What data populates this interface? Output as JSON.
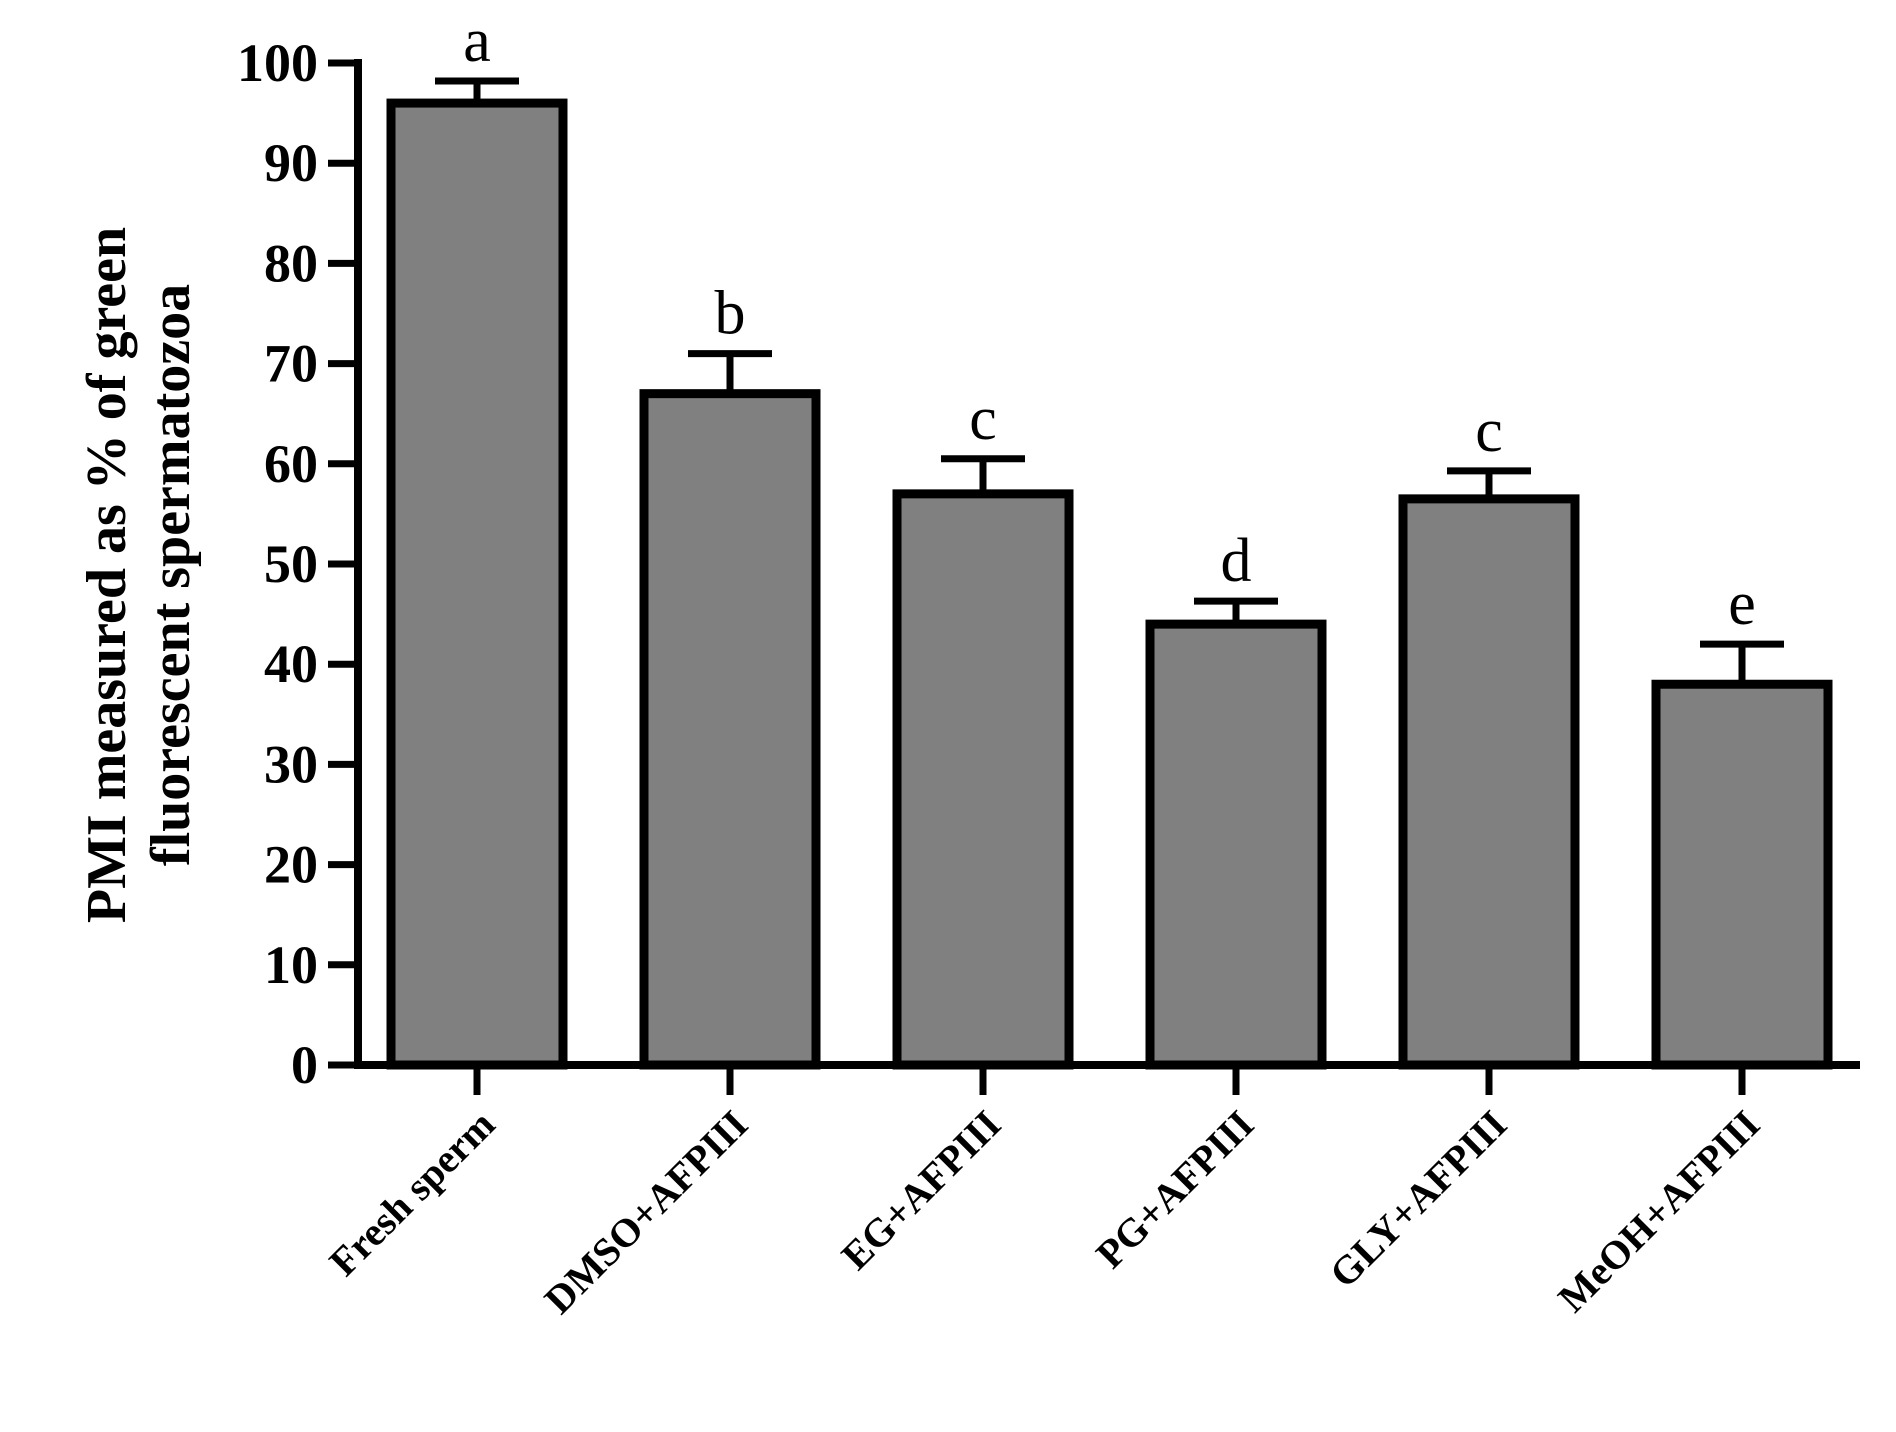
{
  "chart_data": {
    "type": "bar",
    "categories": [
      "Fresh sperm",
      "DMSO+AFPIII",
      "EG+AFPIII",
      "PG+AFPIII",
      "GLY+AFPIII",
      "MeOH+AFPIII"
    ],
    "values": [
      96,
      67,
      57,
      44,
      56.5,
      38
    ],
    "errors": [
      2.2,
      4,
      3.5,
      2.3,
      2.8,
      4
    ],
    "significance_letters": [
      "a",
      "b",
      "c",
      "d",
      "c",
      "e"
    ],
    "ylabel_line1": "PMI measured as % of green",
    "ylabel_line2": "fluorescent spermatozoa",
    "xlabel": "",
    "title": "",
    "ylim": [
      0,
      100
    ],
    "yticks": [
      0,
      10,
      20,
      30,
      40,
      50,
      60,
      70,
      80,
      90,
      100
    ],
    "grid": false,
    "bar_color": "#808080",
    "edge_color": "#000000"
  }
}
